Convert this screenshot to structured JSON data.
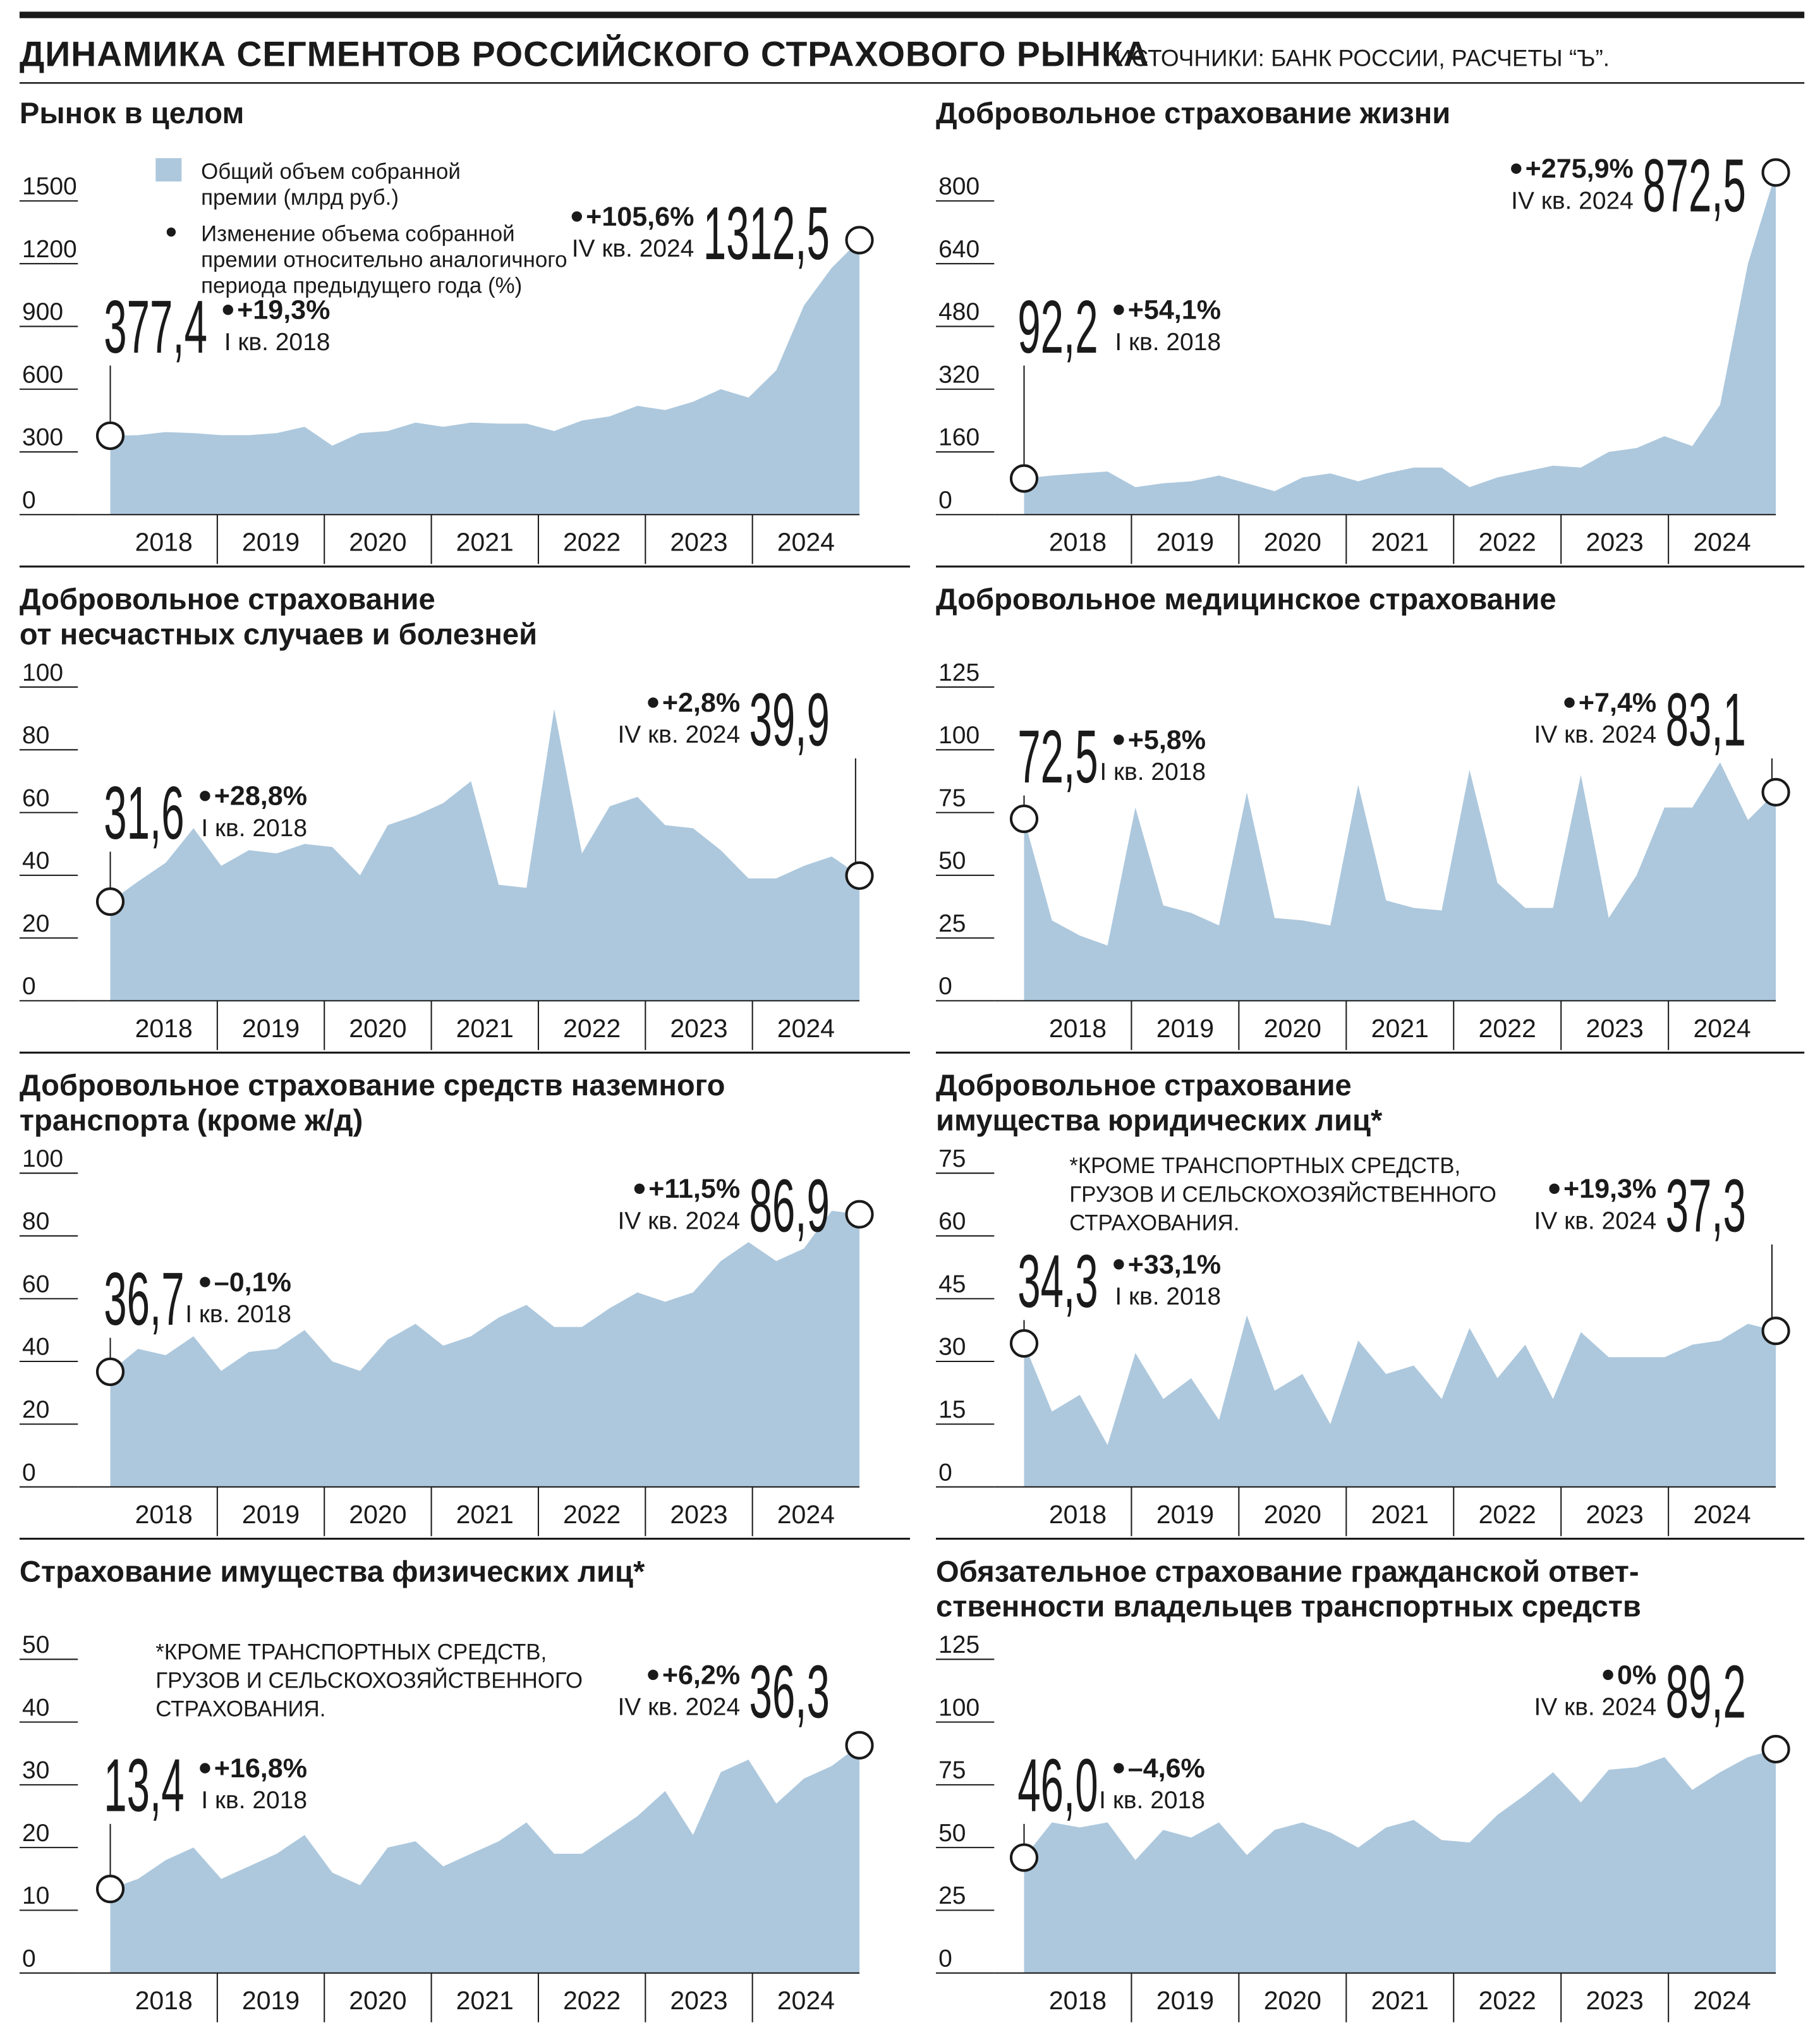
{
  "header": {
    "title": "ДИНАМИКА СЕГМЕНТОВ РОССИЙСКОГО СТРАХОВОГО РЫНКА",
    "source": "ИСТОЧНИКИ: БАНК РОССИИ, РАСЧЕТЫ “Ъ”."
  },
  "chart_data": [
    {
      "type": "area",
      "title": [
        "Рынок в целом"
      ],
      "color": "#adc8dd",
      "legend": {
        "area": [
          "Общий объем собранной",
          "премии (млрд руб.)"
        ],
        "dot": [
          "Изменение объема собранной",
          "премии относительно аналогичного",
          "периода предыдущего года (%)"
        ]
      },
      "years": [
        "2018",
        "2019",
        "2020",
        "2021",
        "2022",
        "2023",
        "2024"
      ],
      "values": [
        377.4,
        380,
        395,
        390,
        380,
        380,
        390,
        420,
        330,
        390,
        400,
        440,
        420,
        440,
        435,
        435,
        400,
        450,
        470,
        520,
        500,
        540,
        600,
        560,
        690,
        1000,
        1180,
        1312.5
      ],
      "value_labels": [
        "377,4",
        null,
        null,
        null,
        null,
        null,
        null,
        null,
        null,
        null,
        null,
        null,
        null,
        null,
        null,
        null,
        null,
        null,
        null,
        null,
        null,
        null,
        null,
        null,
        null,
        null,
        null,
        "1312,5"
      ],
      "ylim": [
        0,
        1500
      ],
      "yticks": [
        0,
        300,
        600,
        900,
        1200,
        1500
      ],
      "start_change": {
        "value": 19.3,
        "label": "+19,3%"
      },
      "start_period": "I кв. 2018",
      "end_change": {
        "value": 105.6,
        "label": "+105,6%"
      },
      "end_period": "IV кв. 2024"
    },
    {
      "type": "area",
      "title": [
        "Добровольное страхование жизни"
      ],
      "color": "#adc8dd",
      "years": [
        "2018",
        "2019",
        "2020",
        "2021",
        "2022",
        "2023",
        "2024"
      ],
      "values": [
        92.2,
        100,
        105,
        110,
        70,
        80,
        85,
        100,
        80,
        60,
        95,
        105,
        85,
        105,
        120,
        120,
        70,
        95,
        110,
        125,
        120,
        160,
        170,
        200,
        175,
        280,
        640,
        872.5
      ],
      "value_labels": [
        "92,2",
        null,
        null,
        null,
        null,
        null,
        null,
        null,
        null,
        null,
        null,
        null,
        null,
        null,
        null,
        null,
        null,
        null,
        null,
        null,
        null,
        null,
        null,
        null,
        null,
        null,
        null,
        "872,5"
      ],
      "ylim": [
        0,
        800
      ],
      "yticks": [
        0,
        160,
        320,
        480,
        640,
        800
      ],
      "start_change": {
        "value": 54.1,
        "label": "+54,1%"
      },
      "start_period": "I кв. 2018",
      "end_change": {
        "value": 275.9,
        "label": "+275,9%"
      },
      "end_period": "IV кв. 2024"
    },
    {
      "type": "area",
      "title": [
        "Добровольное страхование",
        "от несчастных случаев и болезней"
      ],
      "color": "#adc8dd",
      "years": [
        "2018",
        "2019",
        "2020",
        "2021",
        "2022",
        "2023",
        "2024"
      ],
      "values": [
        31.6,
        38,
        44,
        55,
        43,
        48,
        47,
        50,
        49,
        40,
        56,
        59,
        63,
        70,
        37,
        36,
        93,
        47,
        62,
        65,
        56,
        55,
        48,
        39,
        39,
        43,
        46,
        39.9
      ],
      "value_labels": [
        "31,6",
        null,
        null,
        null,
        null,
        null,
        null,
        null,
        null,
        null,
        null,
        null,
        null,
        null,
        null,
        null,
        null,
        null,
        null,
        null,
        null,
        null,
        null,
        null,
        null,
        null,
        null,
        "39,9"
      ],
      "ylim": [
        0,
        100
      ],
      "yticks": [
        0,
        20,
        40,
        60,
        80,
        100
      ],
      "start_change": {
        "value": 28.8,
        "label": "+28,8%"
      },
      "start_period": "I кв. 2018",
      "end_change": {
        "value": 2.8,
        "label": "+2,8%"
      },
      "end_period": "IV кв. 2024"
    },
    {
      "type": "area",
      "title": [
        "Добровольное медицинское страхование"
      ],
      "color": "#adc8dd",
      "years": [
        "2018",
        "2019",
        "2020",
        "2021",
        "2022",
        "2023",
        "2024"
      ],
      "values": [
        72.5,
        32,
        26,
        22,
        77,
        38,
        35,
        30,
        83,
        33,
        32,
        30,
        86,
        40,
        37,
        36,
        92,
        47,
        37,
        37,
        90,
        33,
        50,
        77,
        77,
        95,
        72,
        83.1
      ],
      "value_labels": [
        "72,5",
        null,
        null,
        null,
        null,
        null,
        null,
        null,
        null,
        null,
        null,
        null,
        null,
        null,
        null,
        null,
        null,
        null,
        null,
        null,
        null,
        null,
        null,
        null,
        null,
        null,
        null,
        "83,1"
      ],
      "ylim": [
        0,
        125
      ],
      "yticks": [
        0,
        25,
        50,
        75,
        100,
        125
      ],
      "start_change": {
        "value": 5.8,
        "label": "+5,8%"
      },
      "start_period": "I кв. 2018",
      "end_change": {
        "value": 7.4,
        "label": "+7,4%"
      },
      "end_period": "IV кв. 2024"
    },
    {
      "type": "area",
      "title": [
        "Добровольное страхование средств наземного",
        "транспорта (кроме ж/д)"
      ],
      "color": "#adc8dd",
      "years": [
        "2018",
        "2019",
        "2020",
        "2021",
        "2022",
        "2023",
        "2024"
      ],
      "values": [
        36.7,
        44,
        42,
        48,
        37,
        43,
        44,
        50,
        40,
        37,
        47,
        52,
        45,
        48,
        54,
        58,
        51,
        51,
        57,
        62,
        59,
        62,
        72,
        78,
        72,
        76,
        88,
        86.9
      ],
      "value_labels": [
        "36,7",
        null,
        null,
        null,
        null,
        null,
        null,
        null,
        null,
        null,
        null,
        null,
        null,
        null,
        null,
        null,
        null,
        null,
        null,
        null,
        null,
        null,
        null,
        null,
        null,
        null,
        null,
        "86,9"
      ],
      "ylim": [
        0,
        100
      ],
      "yticks": [
        0,
        20,
        40,
        60,
        80,
        100
      ],
      "start_change": {
        "value": -0.1,
        "label": "–0,1%"
      },
      "start_period": "I кв. 2018",
      "end_change": {
        "value": 11.5,
        "label": "+11,5%"
      },
      "end_period": "IV кв. 2024"
    },
    {
      "type": "area",
      "title": [
        "Добровольное страхование",
        "имущества юридических лиц*"
      ],
      "color": "#adc8dd",
      "note": [
        "*КРОМЕ ТРАНСПОРТНЫХ СРЕДСТВ,",
        "ГРУЗОВ И СЕЛЬСКОХОЗЯЙСТВЕННОГО",
        "СТРАХОВАНИЯ."
      ],
      "years": [
        "2018",
        "2019",
        "2020",
        "2021",
        "2022",
        "2023",
        "2024"
      ],
      "values": [
        34.3,
        18,
        22,
        10,
        32,
        21,
        26,
        16,
        41,
        23,
        27,
        15,
        35,
        27,
        29,
        21,
        38,
        26,
        34,
        21,
        37,
        31,
        31,
        31,
        34,
        35,
        39,
        37.3
      ],
      "value_labels": [
        "34,3",
        null,
        null,
        null,
        null,
        null,
        null,
        null,
        null,
        null,
        null,
        null,
        null,
        null,
        null,
        null,
        null,
        null,
        null,
        null,
        null,
        null,
        null,
        null,
        null,
        null,
        null,
        "37,3"
      ],
      "ylim": [
        0,
        75
      ],
      "yticks": [
        0,
        15,
        30,
        45,
        60,
        75
      ],
      "start_change": {
        "value": 33.1,
        "label": "+33,1%"
      },
      "start_period": "I кв. 2018",
      "end_change": {
        "value": 19.3,
        "label": "+19,3%"
      },
      "end_period": "IV кв. 2024"
    },
    {
      "type": "area",
      "title": [
        "Страхование имущества физических лиц*"
      ],
      "color": "#adc8dd",
      "note": [
        "*КРОМЕ ТРАНСПОРТНЫХ СРЕДСТВ,",
        "ГРУЗОВ И СЕЛЬСКОХОЗЯЙСТВЕННОГО",
        "СТРАХОВАНИЯ."
      ],
      "years": [
        "2018",
        "2019",
        "2020",
        "2021",
        "2022",
        "2023",
        "2024"
      ],
      "values": [
        13.4,
        15,
        18,
        20,
        15,
        17,
        19,
        22,
        16,
        14,
        20,
        21,
        17,
        19,
        21,
        24,
        19,
        19,
        22,
        25,
        29,
        22,
        32,
        34,
        27,
        31,
        33,
        36.3
      ],
      "value_labels": [
        "13,4",
        null,
        null,
        null,
        null,
        null,
        null,
        null,
        null,
        null,
        null,
        null,
        null,
        null,
        null,
        null,
        null,
        null,
        null,
        null,
        null,
        null,
        null,
        null,
        null,
        null,
        null,
        "36,3"
      ],
      "ylim": [
        0,
        50
      ],
      "yticks": [
        0,
        10,
        20,
        30,
        40,
        50
      ],
      "start_change": {
        "value": 16.8,
        "label": "+16,8%"
      },
      "start_period": "I кв. 2018",
      "end_change": {
        "value": 6.2,
        "label": "+6,2%"
      },
      "end_period": "IV кв. 2024"
    },
    {
      "type": "area",
      "title": [
        "Обязательное страхование гражданской ответ-",
        "ственности владельцев транспортных средств"
      ],
      "color": "#adc8dd",
      "years": [
        "2018",
        "2019",
        "2020",
        "2021",
        "2022",
        "2023",
        "2024"
      ],
      "values": [
        46.0,
        60,
        58,
        60,
        45,
        57,
        54,
        60,
        47,
        57,
        60,
        56,
        50,
        58,
        61,
        53,
        52,
        63,
        71,
        80,
        68,
        81,
        82,
        86,
        73,
        80,
        86,
        89.2
      ],
      "value_labels": [
        "46,0",
        null,
        null,
        null,
        null,
        null,
        null,
        null,
        null,
        null,
        null,
        null,
        null,
        null,
        null,
        null,
        null,
        null,
        null,
        null,
        null,
        null,
        null,
        null,
        null,
        null,
        null,
        "89,2"
      ],
      "ylim": [
        0,
        125
      ],
      "yticks": [
        0,
        25,
        50,
        75,
        100,
        125
      ],
      "start_change": {
        "value": -4.6,
        "label": "–4,6%"
      },
      "start_period": "I кв. 2018",
      "end_change": {
        "value": 0,
        "label": "0%"
      },
      "end_period": "IV кв. 2024"
    }
  ]
}
